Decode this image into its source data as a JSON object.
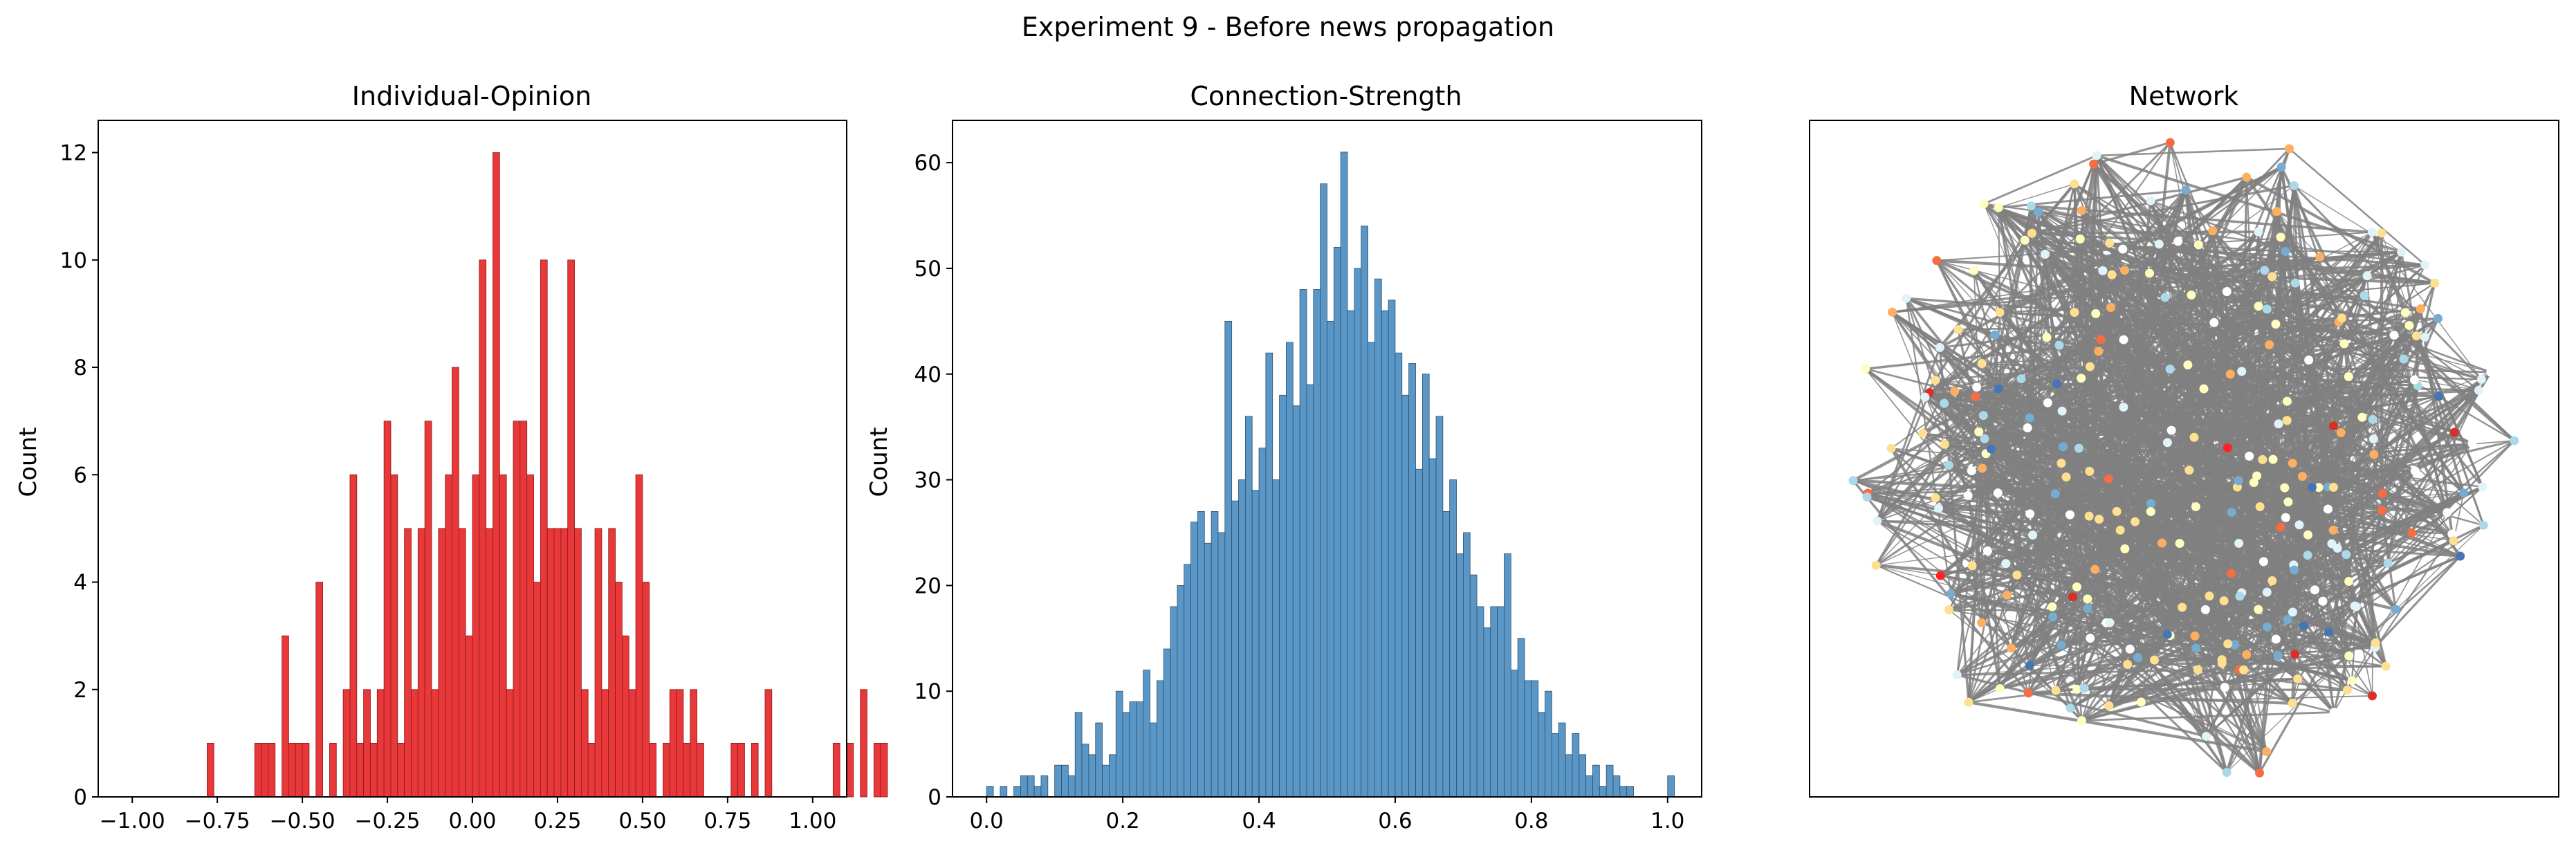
{
  "figure": {
    "suptitle": "Experiment 9 - Before news propagation"
  },
  "colors": {
    "opinion_bar": "#e8383a",
    "opinion_edge": "#8a1a1a",
    "strength_bar": "#5b97c6",
    "strength_edge": "#2d4f6b",
    "network_edge": "#808080"
  },
  "chart_data": [
    {
      "type": "bar",
      "title": "Individual-Opinion",
      "xlabel": "",
      "ylabel": "Count",
      "xlim": [
        -1.1,
        1.1
      ],
      "ylim": [
        0,
        12.6
      ],
      "xticks": [
        "-1.00",
        "-0.75",
        "-0.50",
        "-0.25",
        "0.00",
        "0.25",
        "0.50",
        "0.75",
        "1.00"
      ],
      "yticks": [
        "0",
        "2",
        "4",
        "6",
        "8",
        "10",
        "12"
      ],
      "bin_width": 0.02,
      "bin_start": -0.78,
      "values": [
        1,
        0,
        0,
        0,
        0,
        0,
        0,
        1,
        1,
        1,
        0,
        3,
        1,
        1,
        1,
        0,
        4,
        0,
        1,
        0,
        2,
        6,
        1,
        2,
        1,
        2,
        7,
        6,
        1,
        5,
        2,
        5,
        7,
        2,
        5,
        6,
        8,
        5,
        3,
        6,
        10,
        5,
        12,
        6,
        2,
        7,
        7,
        6,
        4,
        10,
        5,
        5,
        5,
        10,
        5,
        2,
        1,
        5,
        2,
        5,
        4,
        3,
        2,
        6,
        4,
        1,
        0,
        1,
        2,
        2,
        1,
        2,
        1,
        0,
        0,
        0,
        0,
        1,
        1,
        0,
        1,
        0,
        2,
        0,
        0,
        0,
        0,
        0,
        0,
        0,
        0,
        0,
        1,
        0,
        1,
        0,
        2,
        0,
        1,
        1
      ],
      "grid": false
    },
    {
      "type": "bar",
      "title": "Connection-Strength",
      "xlabel": "",
      "ylabel": "Count",
      "xlim": [
        -0.05,
        1.05
      ],
      "ylim": [
        0,
        64
      ],
      "xticks": [
        "0.0",
        "0.2",
        "0.4",
        "0.6",
        "0.8",
        "1.0"
      ],
      "yticks": [
        "0",
        "10",
        "20",
        "30",
        "40",
        "50",
        "60"
      ],
      "bin_width": 0.01,
      "bin_start": 0.0,
      "values": [
        1,
        0,
        1,
        0,
        1,
        2,
        2,
        1,
        2,
        0,
        3,
        3,
        2,
        8,
        5,
        4,
        7,
        3,
        4,
        10,
        8,
        9,
        9,
        12,
        7,
        11,
        14,
        18,
        20,
        22,
        26,
        27,
        24,
        27,
        25,
        45,
        28,
        30,
        36,
        29,
        33,
        42,
        30,
        38,
        43,
        37,
        48,
        39,
        48,
        58,
        45,
        52,
        61,
        46,
        50,
        54,
        43,
        49,
        46,
        47,
        42,
        38,
        41,
        31,
        40,
        32,
        36,
        27,
        30,
        23,
        25,
        21,
        18,
        16,
        18,
        18,
        23,
        12,
        15,
        11,
        11,
        8,
        10,
        6,
        7,
        4,
        6,
        4,
        2,
        3,
        1,
        3,
        2,
        1,
        1,
        0,
        0,
        0,
        0,
        0,
        2
      ],
      "grid": false
    },
    {
      "type": "network",
      "title": "Network",
      "node_count": 300,
      "node_palette": [
        "#fffebf",
        "#fee090",
        "#abd9e9",
        "#74add1",
        "#fdae61",
        "#ffffff",
        "#f46d43",
        "#e0f3f8",
        "#4575b4",
        "#d73027",
        "#ff2222"
      ],
      "edge_color": "#808080",
      "axes_visible": false
    }
  ]
}
